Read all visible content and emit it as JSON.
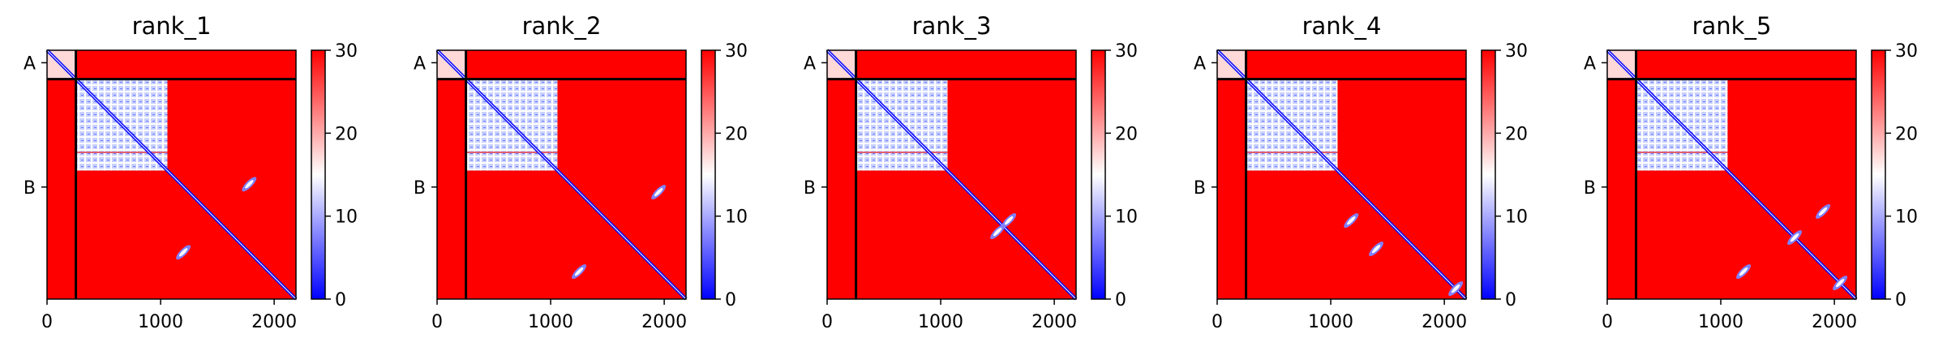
{
  "figure": {
    "background": "#ffffff"
  },
  "chart_data": [
    {
      "type": "heatmap",
      "title": "rank_1",
      "x_ticks": [
        "0",
        "1000",
        "2000"
      ],
      "x_tick_values": [
        0,
        1000,
        2000
      ],
      "x_range": [
        0,
        2192
      ],
      "y_tick_labels": [
        "A",
        "B"
      ],
      "y_tick_values": [
        110,
        1205
      ],
      "chain_boundary": 254,
      "colorbar": {
        "min": 0,
        "max": 30,
        "ticks": [
          "0",
          "10",
          "20",
          "30"
        ],
        "colormap": "bwr"
      },
      "ordered_block": [
        254,
        1060
      ],
      "off_diagonal_features": [
        [
          1780,
          1180
        ],
        [
          1200,
          1780
        ]
      ]
    },
    {
      "type": "heatmap",
      "title": "rank_2",
      "x_ticks": [
        "0",
        "1000",
        "2000"
      ],
      "x_tick_values": [
        0,
        1000,
        2000
      ],
      "x_range": [
        0,
        2192
      ],
      "y_tick_labels": [
        "A",
        "B"
      ],
      "y_tick_values": [
        110,
        1205
      ],
      "chain_boundary": 254,
      "colorbar": {
        "min": 0,
        "max": 30,
        "ticks": [
          "0",
          "10",
          "20",
          "30"
        ],
        "colormap": "bwr"
      },
      "ordered_block": [
        254,
        1060
      ],
      "off_diagonal_features": [
        [
          1950,
          1250
        ],
        [
          1250,
          1950
        ]
      ]
    },
    {
      "type": "heatmap",
      "title": "rank_3",
      "x_ticks": [
        "0",
        "1000",
        "2000"
      ],
      "x_tick_values": [
        0,
        1000,
        2000
      ],
      "x_range": [
        0,
        2192
      ],
      "y_tick_labels": [
        "A",
        "B"
      ],
      "y_tick_values": [
        110,
        1205
      ],
      "chain_boundary": 254,
      "colorbar": {
        "min": 0,
        "max": 30,
        "ticks": [
          "0",
          "10",
          "20",
          "30"
        ],
        "colormap": "bwr"
      },
      "ordered_block": [
        254,
        1060
      ],
      "off_diagonal_features": [
        [
          1600,
          1500
        ],
        [
          1500,
          1600
        ]
      ]
    },
    {
      "type": "heatmap",
      "title": "rank_4",
      "x_ticks": [
        "0",
        "1000",
        "2000"
      ],
      "x_tick_values": [
        0,
        1000,
        2000
      ],
      "x_range": [
        0,
        2192
      ],
      "y_tick_labels": [
        "A",
        "B"
      ],
      "y_tick_values": [
        110,
        1205
      ],
      "chain_boundary": 254,
      "colorbar": {
        "min": 0,
        "max": 30,
        "ticks": [
          "0",
          "10",
          "20",
          "30"
        ],
        "colormap": "bwr"
      },
      "ordered_block": [
        254,
        1060
      ],
      "off_diagonal_features": [
        [
          1180,
          1500
        ],
        [
          1400,
          1750
        ],
        [
          2100,
          2100
        ]
      ]
    },
    {
      "type": "heatmap",
      "title": "rank_5",
      "x_ticks": [
        "0",
        "1000",
        "2000"
      ],
      "x_tick_values": [
        0,
        1000,
        2000
      ],
      "x_range": [
        0,
        2192
      ],
      "y_tick_labels": [
        "A",
        "B"
      ],
      "y_tick_values": [
        110,
        1205
      ],
      "chain_boundary": 254,
      "colorbar": {
        "min": 0,
        "max": 30,
        "ticks": [
          "0",
          "10",
          "20",
          "30"
        ],
        "colormap": "bwr"
      },
      "ordered_block": [
        254,
        1060
      ],
      "off_diagonal_features": [
        [
          1900,
          1420
        ],
        [
          1200,
          1950
        ],
        [
          1650,
          1650
        ],
        [
          2050,
          2050
        ]
      ]
    }
  ]
}
